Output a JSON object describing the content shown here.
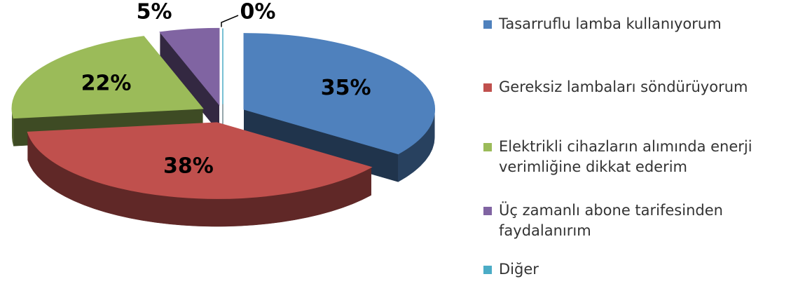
{
  "chart_data": {
    "type": "pie",
    "categories": [
      "Tasarruflu lamba kullanıyorum",
      "Gereksiz lambaları söndürüyorum",
      "Elektrikli cihazların alımında enerji verimliğine dikkat ederim",
      "Üç zamanlı abone tarifesinden faydalanırım",
      "Diğer"
    ],
    "values": [
      35,
      38,
      22,
      5,
      0
    ],
    "value_labels": [
      "35%",
      "38%",
      "22%",
      "5%",
      "0%"
    ],
    "colors": [
      "#4f81bd",
      "#c0504d",
      "#9bbb59",
      "#8064a2",
      "#4bacc6"
    ],
    "legend": "right"
  }
}
